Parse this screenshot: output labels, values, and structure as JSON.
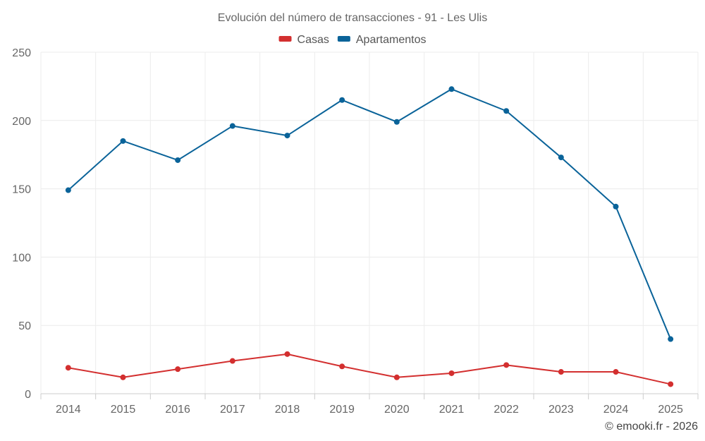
{
  "chart_data": {
    "type": "line",
    "title": "Evolución del número de transacciones - 91 - Les Ulis",
    "categories": [
      "2014",
      "2015",
      "2016",
      "2017",
      "2018",
      "2019",
      "2020",
      "2021",
      "2022",
      "2023",
      "2024",
      "2025"
    ],
    "series": [
      {
        "name": "Casas",
        "color": "#d32f2f",
        "values": [
          19,
          12,
          18,
          24,
          29,
          20,
          12,
          15,
          21,
          16,
          16,
          7
        ]
      },
      {
        "name": "Apartamentos",
        "color": "#0a6399",
        "values": [
          149,
          185,
          171,
          196,
          189,
          215,
          199,
          223,
          207,
          173,
          137,
          40
        ]
      }
    ],
    "ylim": [
      0,
      250
    ],
    "yticks": [
      "0",
      "50",
      "100",
      "150",
      "200",
      "250"
    ],
    "xlabel": "",
    "ylabel": "",
    "grid": true,
    "legend_position": "top-center"
  },
  "credit": "© emooki.fr - 2026"
}
